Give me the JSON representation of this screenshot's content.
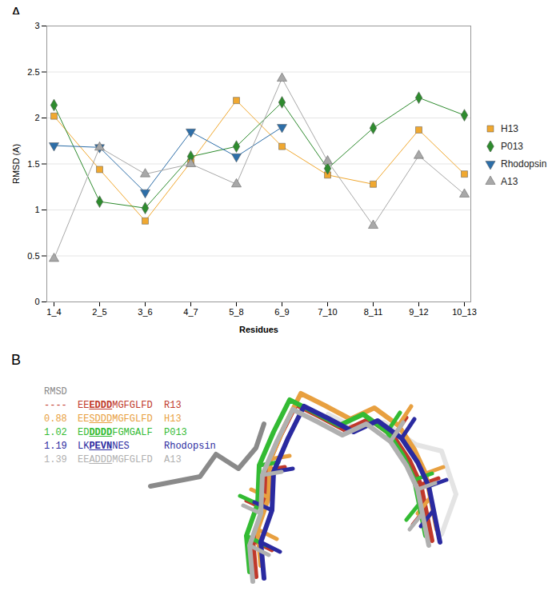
{
  "chart_data": {
    "type": "line",
    "title": "A",
    "x_label": "Residues",
    "y_label": "RMSD (A)",
    "categories": [
      "1_4",
      "2_5",
      "3_6",
      "4_7",
      "5_8",
      "6_9",
      "7_10",
      "8_11",
      "9_12",
      "10_13"
    ],
    "ylim": [
      0,
      3
    ],
    "yticks": [
      0,
      0.5,
      1,
      1.5,
      2,
      2.5,
      3
    ],
    "grid": true,
    "legend": "right",
    "series": [
      {
        "name": "H13",
        "color": "#f0a830",
        "marker": "square",
        "values": [
          2.02,
          1.44,
          0.88,
          1.52,
          2.19,
          1.69,
          1.38,
          1.28,
          1.87,
          1.39
        ]
      },
      {
        "name": "P013",
        "color": "#2e8b2e",
        "marker": "diamond",
        "values": [
          2.14,
          1.09,
          1.02,
          1.58,
          1.69,
          2.17,
          1.45,
          1.89,
          2.22,
          2.03
        ]
      },
      {
        "name": "Rhodopsin",
        "color": "#2d6ea8",
        "marker": "triangle-down",
        "values": [
          1.7,
          1.68,
          1.19,
          1.85,
          1.58,
          1.9,
          null,
          null,
          null,
          null
        ]
      },
      {
        "name": "A13",
        "color": "#a8a8a8",
        "marker": "triangle",
        "values": [
          0.47,
          1.68,
          1.39,
          1.5,
          1.28,
          2.43,
          1.53,
          0.83,
          1.59,
          1.17
        ]
      }
    ]
  },
  "panel_b": {
    "label": "B",
    "header": "RMSD",
    "rows": [
      {
        "rmsd": "----",
        "prefix": "EE",
        "motif": "EDDD",
        "suffix": "MGFGLFD",
        "name": "R13",
        "color": "#c0392b",
        "bold": true
      },
      {
        "rmsd": 0.88,
        "prefix": "EE",
        "motif": "SDDD",
        "suffix": "MGFGLFD",
        "name": "H13",
        "color": "#e8a040",
        "bold": false
      },
      {
        "rmsd": 1.02,
        "prefix": "ED",
        "motif": "DDDD",
        "suffix": "FGMGALF",
        "name": "P013",
        "color": "#33bb33",
        "bold": true
      },
      {
        "rmsd": 1.19,
        "prefix": "LK",
        "motif": "PEVN",
        "suffix": "NES",
        "name": "Rhodopsin",
        "color": "#2a2aa0",
        "bold": true
      },
      {
        "rmsd": 1.39,
        "prefix": "EE",
        "motif": "ADDD",
        "suffix": "MGFGLFD",
        "name": "A13",
        "color": "#b0b0b0",
        "bold": false
      }
    ]
  }
}
